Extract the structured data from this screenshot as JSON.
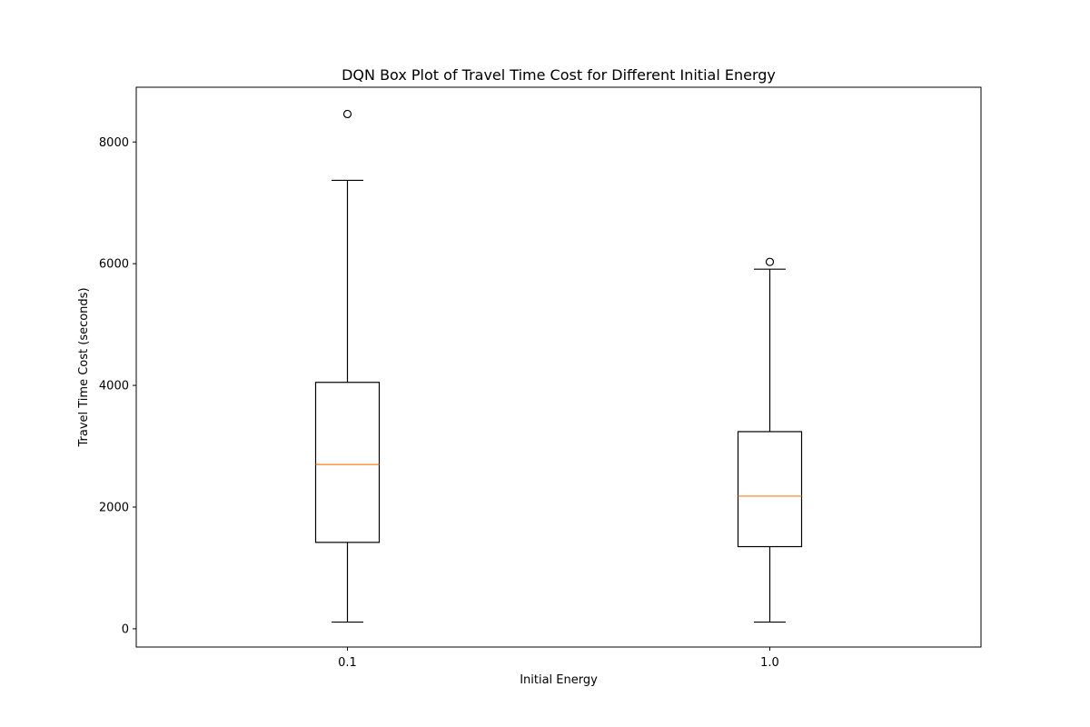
{
  "chart_data": {
    "type": "box",
    "title": "DQN Box Plot of Travel Time Cost for Different Initial Energy",
    "xlabel": "Initial Energy",
    "ylabel": "Travel Time Cost (seconds)",
    "categories": [
      "0.1",
      "1.0"
    ],
    "ylim": [
      -300,
      8900
    ],
    "yticks": [
      0,
      2000,
      4000,
      6000,
      8000
    ],
    "grid": false,
    "boxes": [
      {
        "category": "0.1",
        "whisker_low": 110,
        "q1": 1420,
        "median": 2700,
        "q3": 4050,
        "whisker_high": 7370,
        "outliers": [
          8460
        ]
      },
      {
        "category": "1.0",
        "whisker_low": 110,
        "q1": 1350,
        "median": 2180,
        "q3": 3240,
        "whisker_high": 5910,
        "outliers": [
          6030
        ]
      }
    ],
    "colors": {
      "box": "#000000",
      "median": "#ff7f0e",
      "background": "#ffffff"
    }
  }
}
